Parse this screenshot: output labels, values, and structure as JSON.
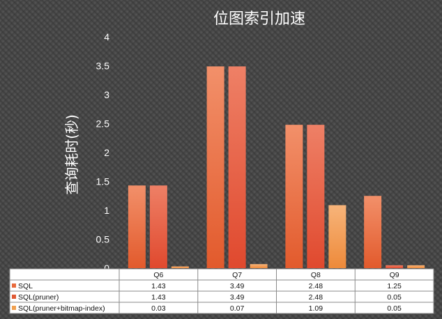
{
  "chart_data": {
    "type": "bar",
    "title": "位图索引加速",
    "ylabel": "查询耗时(秒)",
    "xlabel": "",
    "ylim": [
      0,
      4
    ],
    "yticks": [
      "0",
      "0.5",
      "1",
      "1.5",
      "2",
      "2.5",
      "3",
      "3.5",
      "4"
    ],
    "categories": [
      "Q6",
      "Q7",
      "Q8",
      "Q9"
    ],
    "grid": false,
    "legend": "data-table-below",
    "series": [
      {
        "name": "SQL",
        "values": [
          1.43,
          3.49,
          2.48,
          1.25
        ],
        "labels": [
          "1.43",
          "3.49",
          "2.48",
          "1.25"
        ],
        "color": "#e86a3c"
      },
      {
        "name": "SQL(pruner)",
        "values": [
          1.43,
          3.49,
          2.48,
          0.05
        ],
        "labels": [
          "1.43",
          "3.49",
          "2.48",
          "0.05"
        ],
        "color": "#e05a35"
      },
      {
        "name": "SQL(pruner+bitmap-index)",
        "values": [
          0.03,
          0.07,
          1.09,
          0.05
        ],
        "labels": [
          "0.03",
          "0.07",
          "1.09",
          "0.05"
        ],
        "color": "#f0a050"
      }
    ]
  },
  "colors": {
    "background": "#4a4a4a",
    "table_background": "#ffffff",
    "table_border": "#8a8a8a",
    "text": "#ffffff"
  }
}
